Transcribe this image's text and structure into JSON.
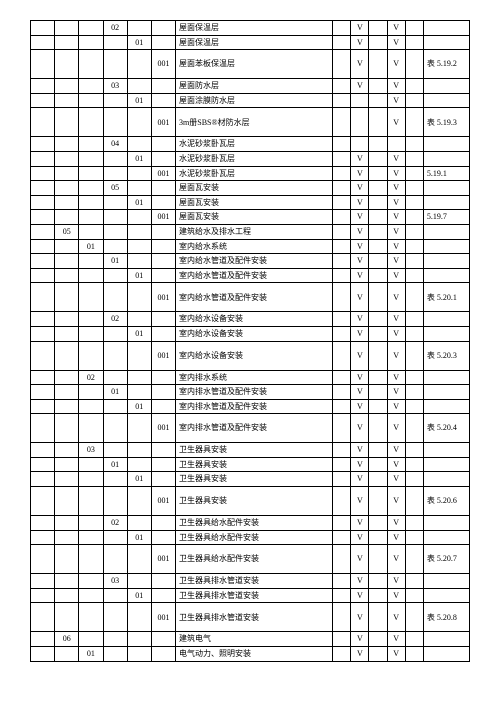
{
  "font_family": "SimSun",
  "border_color": "#000000",
  "bg_color": "#ffffff",
  "V": "V",
  "tableRef": {
    "t1": "表 5.19.2",
    "t2": "表 5.19.3",
    "t3": "5.19.1",
    "t4": "5.19.7",
    "t5": "表 5.20.1",
    "t6": "表 5.20.3",
    "t7": "表 5.20.4",
    "t8": "表 5.20.6",
    "t9": "表 5.20.7",
    "t10": "表 5.20.8"
  },
  "rows": [
    {
      "c4": "02",
      "desc": "屋面保温层",
      "v9": "V",
      "v11": "V"
    },
    {
      "c5": "01",
      "desc": "屋面保温层",
      "v9": "V",
      "v11": "V"
    },
    {
      "c6": "001",
      "desc": "屋面苯板保温层",
      "v9": "V",
      "v11": "V",
      "ref": "t1",
      "tall": true
    },
    {
      "c4": "03",
      "desc": "屋面防水层",
      "v9": "V",
      "v11": "V"
    },
    {
      "c5": "01",
      "desc": "屋面涂膜防水层",
      "v11": "V"
    },
    {
      "c6": "001",
      "desc": "3m册SBS®材防水层",
      "v11": "V",
      "ref": "t2",
      "tall": true
    },
    {
      "c4": "04",
      "desc": "水泥砂浆卧瓦层"
    },
    {
      "c5": "01",
      "desc": "水泥砂浆卧瓦层",
      "v9": "V",
      "v11": "V"
    },
    {
      "c6": "001",
      "desc": "水泥砂浆卧瓦层",
      "v9": "V",
      "v11": "V",
      "ref": "t3"
    },
    {
      "c4": "05",
      "desc": "屋面瓦安装",
      "v9": "V",
      "v11": "V"
    },
    {
      "c5": "01",
      "desc": "屋面瓦安装",
      "v9": "V",
      "v11": "V"
    },
    {
      "c6": "001",
      "desc": "屋面瓦安装",
      "v9": "V",
      "v11": "V",
      "ref": "t4"
    },
    {
      "c2": "05",
      "desc": "建筑给水及排水工程",
      "v9": "V",
      "v11": "V"
    },
    {
      "c3": "01",
      "desc": "室内给水系统",
      "v9": "V",
      "v11": "V"
    },
    {
      "c4": "01",
      "desc": "室内给水管道及配件安装",
      "v9": "V",
      "v11": "V"
    },
    {
      "c5": "01",
      "desc": "室内给水管道及配件安装",
      "v9": "V",
      "v11": "V"
    },
    {
      "c6": "001",
      "desc": "室内给水管道及配件安装",
      "v9": "V",
      "v11": "V",
      "ref": "t5",
      "tall": true
    },
    {
      "c4": "02",
      "desc": "室内给水设备安装",
      "v9": "V",
      "v11": "V"
    },
    {
      "c5": "01",
      "desc": "室内给水设备安装",
      "v9": "V",
      "v11": "V"
    },
    {
      "c6": "001",
      "desc": "室内给水设备安装",
      "v9": "V",
      "v11": "V",
      "ref": "t6",
      "tall": true
    },
    {
      "c3": "02",
      "desc": "室内排水系统",
      "v9": "V",
      "v11": "V"
    },
    {
      "c4": "01",
      "desc": "室内排水管道及配件安装",
      "v9": "V",
      "v11": "V"
    },
    {
      "c5": "01",
      "desc": "室内排水管道及配件安装",
      "v9": "V",
      "v11": "V"
    },
    {
      "c6": "001",
      "desc": "室内排水管道及配件安装",
      "v9": "V",
      "v11": "V",
      "ref": "t7",
      "tall": true
    },
    {
      "c3": "03",
      "desc": "卫生器具安装",
      "v9": "V",
      "v11": "V"
    },
    {
      "c4": "01",
      "desc": "卫生器具安装",
      "v9": "V",
      "v11": "V"
    },
    {
      "c5": "01",
      "desc": "卫生器具安装",
      "v9": "V",
      "v11": "V"
    },
    {
      "c6": "001",
      "desc": "卫生器具安装",
      "v9": "V",
      "v11": "V",
      "ref": "t8",
      "tall": true
    },
    {
      "c4": "02",
      "desc": "卫生器具给水配件安装",
      "v9": "V",
      "v11": "V"
    },
    {
      "c5": "01",
      "desc": "卫生器具给水配件安装",
      "v9": "V",
      "v11": "V"
    },
    {
      "c6": "001",
      "desc": "卫生器具给水配件安装",
      "v9": "V",
      "v11": "V",
      "ref": "t9",
      "tall": true
    },
    {
      "c4": "03",
      "desc": "卫生器具排水管道安装",
      "v9": "V",
      "v11": "V"
    },
    {
      "c5": "01",
      "desc": "卫生器具排水管道安装",
      "v9": "V",
      "v11": "V"
    },
    {
      "c6": "001",
      "desc": "卫生器具排水管道安装",
      "v9": "V",
      "v11": "V",
      "ref": "t10",
      "tall": true
    },
    {
      "c2": "06",
      "desc": "建筑电气",
      "v9": "V",
      "v11": "V"
    },
    {
      "c3": "01",
      "desc": "电气动力、照明安装",
      "v9": "V",
      "v11": "V"
    }
  ]
}
